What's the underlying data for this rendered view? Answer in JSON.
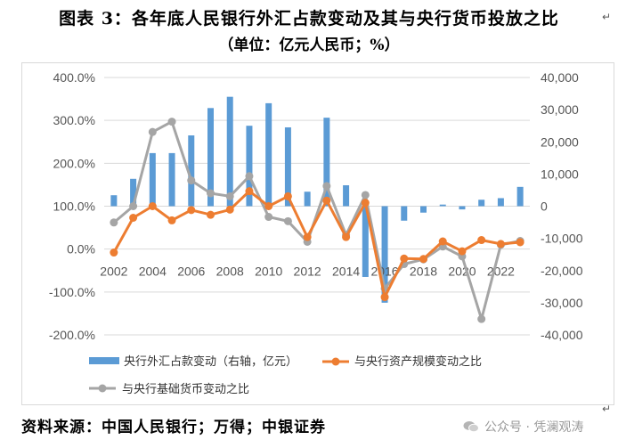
{
  "header": {
    "title": "图表 3：各年底人民银行外汇占款变动及其与央行货币投放之比",
    "subtitle": "（单位：亿元人民币；%）"
  },
  "footer": {
    "source": "资料来源：中国人民银行；万得；中银证券",
    "watermark": "公众号 · 凭澜观涛"
  },
  "colors": {
    "bar": "#5b9bd5",
    "line1": "#ed7d31",
    "line2": "#a5a5a5"
  },
  "chart_data": {
    "type": "bar",
    "categories": [
      "2002",
      "2003",
      "2004",
      "2005",
      "2006",
      "2007",
      "2008",
      "2009",
      "2010",
      "2011",
      "2012",
      "2013",
      "2014",
      "2015",
      "2016",
      "2017",
      "2018",
      "2019",
      "2020",
      "2021",
      "2022",
      "2023"
    ],
    "x_tick_labels": [
      "2002",
      "2004",
      "2006",
      "2008",
      "2010",
      "2012",
      "2014",
      "2016",
      "2018",
      "2020",
      "2022"
    ],
    "y_left": {
      "min": -200,
      "max": 400,
      "ticks": [
        "-200.0%",
        "-100.0%",
        "0.0%",
        "100.0%",
        "200.0%",
        "300.0%",
        "400.0%"
      ]
    },
    "y_right": {
      "min": -40000,
      "max": 40000,
      "ticks": [
        "-40,000",
        "-30,000",
        "-20,000",
        "-10,000",
        "0",
        "10,000",
        "20,000",
        "30,000",
        "40,000"
      ]
    },
    "series": [
      {
        "name": "央行外汇占款变动（右轴，亿元）",
        "type": "bar",
        "axis": "right",
        "values": [
          3400,
          8500,
          16500,
          16500,
          22000,
          30500,
          34000,
          25000,
          32000,
          24500,
          4500,
          27500,
          6500,
          -22000,
          -30000,
          -4500,
          -2000,
          500,
          -1000,
          2000,
          2500,
          6000
        ]
      },
      {
        "name": "与央行资产规模变动之比",
        "type": "line",
        "axis": "left",
        "values": [
          -8,
          73,
          100,
          67,
          91,
          80,
          92,
          135,
          100,
          123,
          28,
          113,
          28,
          108,
          -112,
          -22,
          -23,
          18,
          -5,
          21,
          12,
          16
        ]
      },
      {
        "name": "与央行基础货币变动之比",
        "type": "line",
        "axis": "left",
        "values": [
          62,
          100,
          273,
          297,
          160,
          130,
          123,
          170,
          75,
          65,
          17,
          147,
          33,
          126,
          -92,
          -35,
          -24,
          6,
          -17,
          -163,
          10,
          19
        ]
      }
    ],
    "legend": [
      "央行外汇占款变动（右轴，亿元）",
      "与央行资产规模变动之比",
      "与央行基础货币变动之比"
    ],
    "legend_position": "bottom",
    "grid": "horizontal"
  }
}
